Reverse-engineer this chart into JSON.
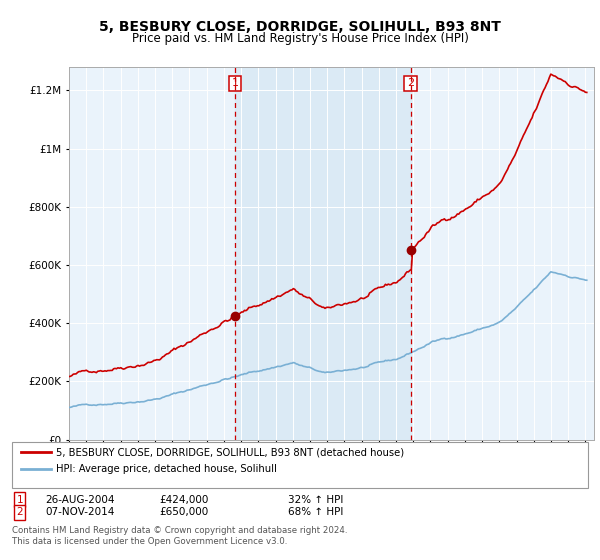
{
  "title": "5, BESBURY CLOSE, DORRIDGE, SOLIHULL, B93 8NT",
  "subtitle": "Price paid vs. HM Land Registry's House Price Index (HPI)",
  "legend_line1": "5, BESBURY CLOSE, DORRIDGE, SOLIHULL, B93 8NT (detached house)",
  "legend_line2": "HPI: Average price, detached house, Solihull",
  "footer1": "Contains HM Land Registry data © Crown copyright and database right 2024.",
  "footer2": "This data is licensed under the Open Government Licence v3.0.",
  "transaction1_date": "26-AUG-2004",
  "transaction1_price": 424000,
  "transaction1_hpi": "32% ↑ HPI",
  "transaction2_date": "07-NOV-2014",
  "transaction2_price": 650000,
  "transaction2_hpi": "68% ↑ HPI",
  "vline1_year": 2004.65,
  "vline2_year": 2014.85,
  "marker1_year": 2004.65,
  "marker1_value": 424000,
  "marker2_year": 2014.85,
  "marker2_value": 650000,
  "ylim_min": 0,
  "ylim_max": 1280000,
  "xlim_min": 1995,
  "xlim_max": 2025.5,
  "yticks": [
    0,
    200000,
    400000,
    600000,
    800000,
    1000000,
    1200000
  ],
  "ytick_labels": [
    "£0",
    "£200K",
    "£400K",
    "£600K",
    "£800K",
    "£1M",
    "£1.2M"
  ],
  "property_color": "#cc0000",
  "hpi_color": "#7ab0d4",
  "vline_color": "#cc0000",
  "shade_color": "#daeaf5",
  "background_color": "#ffffff",
  "plot_bg_color": "#eaf3fb",
  "grid_color": "#ffffff"
}
